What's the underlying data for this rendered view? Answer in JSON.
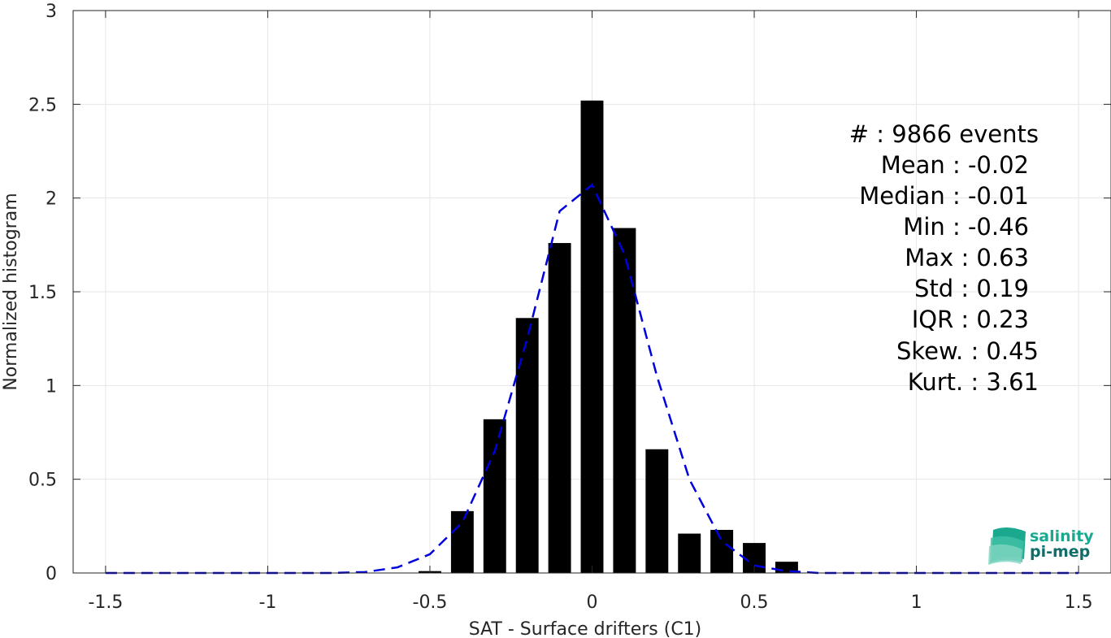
{
  "chart_data": {
    "type": "bar",
    "xlabel": "SAT - Surface drifters (C1)",
    "ylabel": "Normalized histogram",
    "xlim": [
      -1.6,
      1.6
    ],
    "ylim": [
      0,
      3
    ],
    "xticks": [
      -1.5,
      -1,
      -0.5,
      0,
      0.5,
      1,
      1.5
    ],
    "xtick_labels": [
      "-1.5",
      "-1",
      "-0.5",
      "0",
      "0.5",
      "1",
      "1.5"
    ],
    "yticks": [
      0,
      0.5,
      1,
      1.5,
      2,
      2.5,
      3
    ],
    "ytick_labels": [
      "0",
      "0.5",
      "1",
      "1.5",
      "2",
      "2.5",
      "3"
    ],
    "grid": true,
    "bar_width": 0.07,
    "bars": {
      "x": [
        -0.5,
        -0.4,
        -0.3,
        -0.2,
        -0.1,
        0,
        0.1,
        0.2,
        0.3,
        0.4,
        0.5,
        0.6
      ],
      "values": [
        0.01,
        0.33,
        0.82,
        1.36,
        1.76,
        2.52,
        1.84,
        0.66,
        0.21,
        0.23,
        0.16,
        0.06
      ],
      "color": "#000000"
    },
    "fit_line": {
      "style": "dashed",
      "color": "#0000dd",
      "x": [
        -1.5,
        -1.2,
        -1.0,
        -0.8,
        -0.7,
        -0.6,
        -0.5,
        -0.4,
        -0.3,
        -0.2,
        -0.1,
        0.0,
        0.1,
        0.2,
        0.3,
        0.4,
        0.5,
        0.6,
        0.7,
        0.8,
        1.0,
        1.2,
        1.5
      ],
      "y": [
        0,
        0,
        0,
        0,
        0.005,
        0.03,
        0.1,
        0.27,
        0.65,
        1.25,
        1.93,
        2.07,
        1.7,
        1.05,
        0.5,
        0.17,
        0.04,
        0.01,
        0,
        0,
        0,
        0,
        0
      ]
    }
  },
  "stats": [
    {
      "label": "#  : 9866 events"
    },
    {
      "label": "Mean : -0.02"
    },
    {
      "label": "Median : -0.01"
    },
    {
      "label": "Min : -0.46"
    },
    {
      "label": "Max : 0.63"
    },
    {
      "label": "Std : 0.19"
    },
    {
      "label": "IQR : 0.23"
    },
    {
      "label": "Skew. : 0.45"
    },
    {
      "label": "Kurt. : 3.61"
    }
  ],
  "logo": {
    "line1": "salinity",
    "line2": "pi-mep",
    "color1": "#1aa88f",
    "color2": "#0f6e6a"
  }
}
